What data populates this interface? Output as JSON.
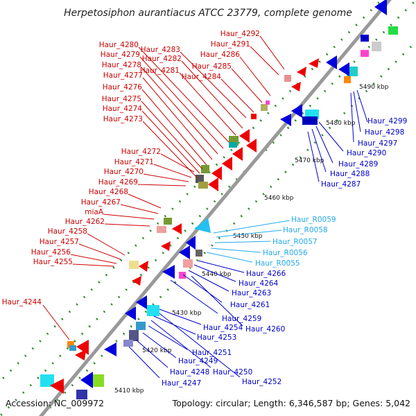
{
  "title": "Herpetosiphon aurantiacus ATCC 23779, complete genome",
  "footer": {
    "accession": "Accession: NC_009972",
    "topology": "Topology: circular; Length: 6,346,587 bp; Genes: 5,042"
  },
  "ticks": [
    "5410 kbp",
    "5420 kbp",
    "5430 kbp",
    "5440 kbp",
    "5450 kbp",
    "5460 kbp",
    "5470 kbp",
    "5480 kbp",
    "5490 kbp"
  ],
  "colors": {
    "red_labels": "#cc0000",
    "blue_labels": "#0000cc",
    "cyan_labels": "#22aaee",
    "backbone": "#888888",
    "dots": "#2a8a2a"
  },
  "labels_left": [
    "Haur_4292",
    "Haur_4291",
    "Haur_4286",
    "Haur_4285",
    "Haur_4284",
    "Haur_4283",
    "Haur_4282",
    "Haur_4281",
    "Haur_4280",
    "Haur_4279",
    "Haur_4278",
    "Haur_4277",
    "Haur_4276",
    "Haur_4275",
    "Haur_4274",
    "Haur_4273",
    "Haur_4272",
    "Haur_4271",
    "Haur_4270",
    "Haur_4269",
    "Haur_4268",
    "Haur_4267",
    "miaA",
    "Haur_4262",
    "Haur_4258",
    "Haur_4257",
    "Haur_4256",
    "Haur_4255",
    "Haur_4244"
  ],
  "labels_right_blue_top": [
    "Haur_4299",
    "Haur_4298",
    "Haur_4297",
    "Haur_4290",
    "Haur_4289",
    "Haur_4288",
    "Haur_4287"
  ],
  "labels_right_cyan": [
    "Haur_R0059",
    "Haur_R0058",
    "Haur_R0057",
    "Haur_R0056",
    "Haur_R0055"
  ],
  "labels_right_blue_bottom": [
    "Haur_4266",
    "Haur_4264",
    "Haur_4263",
    "Haur_4261",
    "Haur_4259",
    "Haur_4260",
    "Haur_4254",
    "Haur_4253",
    "Haur_4251",
    "Haur_4249",
    "Haur_4250",
    "Haur_4248",
    "Haur_4252",
    "Haur_4247"
  ]
}
